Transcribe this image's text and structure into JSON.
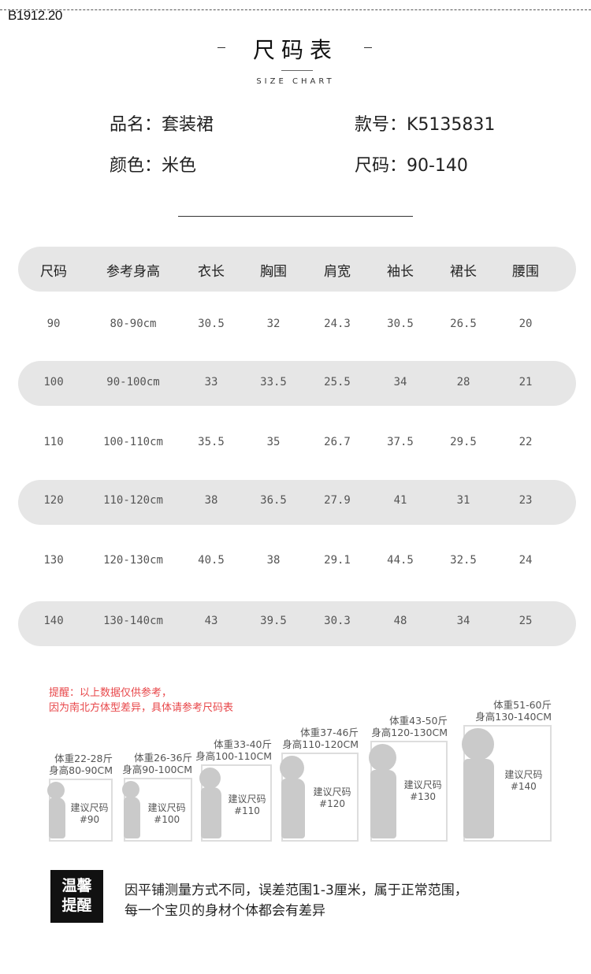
{
  "code": "B1912.20",
  "title": "尺码表",
  "subtitle": "SIZE CHART",
  "info": {
    "name": "品名：套装裙",
    "style_no": "款号：K5135831",
    "color": "颜色：米色",
    "size": "尺码：90-140"
  },
  "table": {
    "headers": [
      "尺码",
      "参考身高",
      "衣长",
      "胸围",
      "肩宽",
      "袖长",
      "裙长",
      "腰围"
    ],
    "rows": [
      [
        "90",
        "80-90cm",
        "30.5",
        "32",
        "24.3",
        "30.5",
        "26.5",
        "20"
      ],
      [
        "100",
        "90-100cm",
        "33",
        "33.5",
        "25.5",
        "34",
        "28",
        "21"
      ],
      [
        "110",
        "100-110cm",
        "35.5",
        "35",
        "26.7",
        "37.5",
        "29.5",
        "22"
      ],
      [
        "120",
        "110-120cm",
        "38",
        "36.5",
        "27.9",
        "41",
        "31",
        "23"
      ],
      [
        "130",
        "120-130cm",
        "40.5",
        "38",
        "29.1",
        "44.5",
        "32.5",
        "24"
      ],
      [
        "140",
        "130-140cm",
        "43",
        "39.5",
        "30.3",
        "48",
        "34",
        "25"
      ]
    ]
  },
  "reminder": [
    "提醒：以上数据仅供参考，",
    "因为南北方体型差异，具体请参考尺码表"
  ],
  "guide": [
    {
      "weight": "体重22-28斤",
      "height": "身高80-90CM",
      "label": "建议尺码",
      "size": "#90"
    },
    {
      "weight": "体重26-36斤",
      "height": "身高90-100CM",
      "label": "建议尺码",
      "size": "#100"
    },
    {
      "weight": "体重33-40斤",
      "height": "身高100-110CM",
      "label": "建议尺码",
      "size": "#110"
    },
    {
      "weight": "体重37-46斤",
      "height": "身高110-120CM",
      "label": "建议尺码",
      "size": "#120"
    },
    {
      "weight": "体重43-50斤",
      "height": "身高120-130CM",
      "label": "建议尺码",
      "size": "#130"
    },
    {
      "weight": "体重51-60斤",
      "height": "身高130-140CM",
      "label": "建议尺码",
      "size": "#140"
    }
  ],
  "warm": {
    "line1": "温馨",
    "line2": "提醒",
    "text1": "因平铺测量方式不同，误差范围1-3厘米，属于正常范围，",
    "text2": "每一个宝贝的身材个体都会有差异"
  },
  "colors": {
    "reminder": "#e8474a",
    "pill": "#e6e6e6",
    "silhouette": "#cacaca"
  }
}
